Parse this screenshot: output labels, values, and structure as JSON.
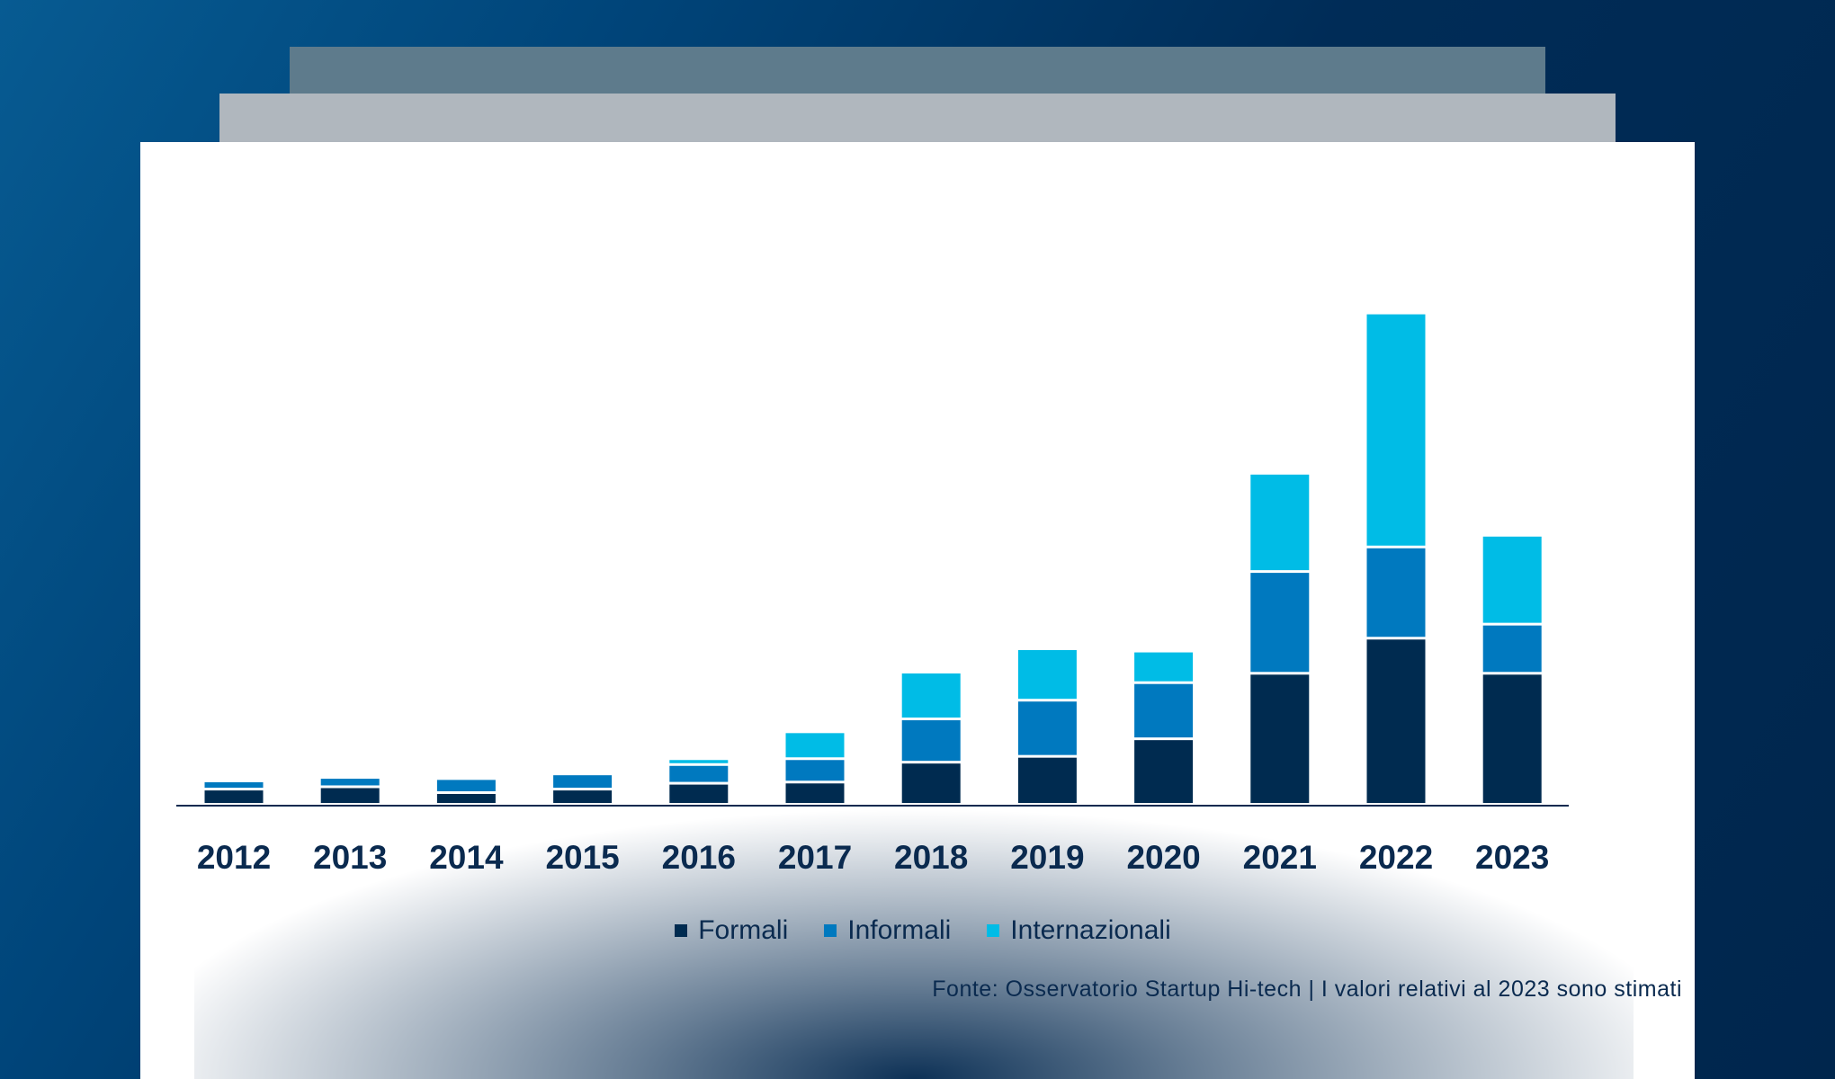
{
  "chart_data": {
    "type": "bar",
    "stacked": true,
    "title": "",
    "xlabel": "",
    "ylabel": "",
    "ylim": [
      0,
      440
    ],
    "grid": false,
    "legend_position": "bottom",
    "categories": [
      "2012",
      "2013",
      "2014",
      "2015",
      "2016",
      "2017",
      "2018",
      "2019",
      "2020",
      "2021",
      "2022",
      "2023"
    ],
    "series": [
      {
        "name": "Formali",
        "color": "#002b50",
        "values": [
          13,
          15,
          10,
          13,
          18,
          19,
          36,
          41,
          56,
          112,
          142,
          112
        ]
      },
      {
        "name": "Informali",
        "color": "#0079bf",
        "values": [
          7,
          8,
          12,
          13,
          16,
          20,
          37,
          48,
          48,
          87,
          78,
          42
        ]
      },
      {
        "name": "Internazionali",
        "color": "#00bce6",
        "values": [
          0,
          0,
          0,
          0,
          5,
          23,
          40,
          44,
          27,
          84,
          200,
          76
        ]
      }
    ],
    "source": "Fonte: Osservatorio  Startup  Hi-tech | I valori relativi  al 2023 sono stimati"
  }
}
